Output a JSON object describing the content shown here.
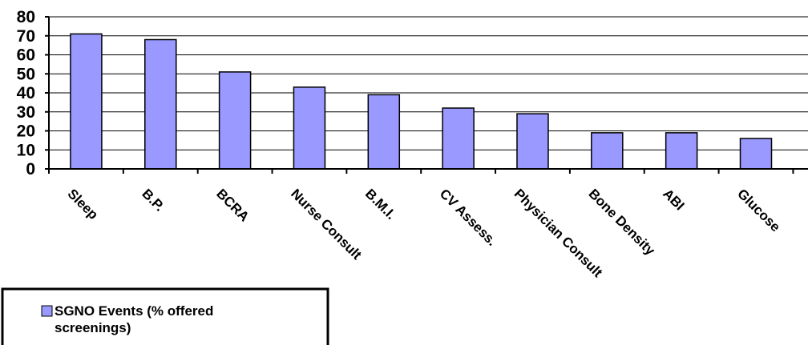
{
  "chart_data": {
    "type": "bar",
    "categories": [
      "Sleep",
      "B.P.",
      "BCRA",
      "Nurse Consult",
      "B.M.I.",
      "CV Assess.",
      "Physician Consult",
      "Bone Density",
      "ABI",
      "Glucose"
    ],
    "series": [
      {
        "name": "SGNO Events (% offered screenings)",
        "values": [
          71,
          68,
          51,
          43,
          39,
          32,
          29,
          19,
          19,
          16
        ]
      }
    ],
    "ylim": [
      0,
      80
    ],
    "yticks": [
      "0",
      "10",
      "20",
      "30",
      "40",
      "50",
      "60",
      "70",
      "80"
    ],
    "grid": true,
    "legend_position": "bottom-left",
    "legend": {
      "line1": "SGNO Events (% offered",
      "line2": "screenings)"
    },
    "colors": {
      "bar": "#9999ff",
      "bar_border": "#000000",
      "grid": "#000000"
    }
  }
}
